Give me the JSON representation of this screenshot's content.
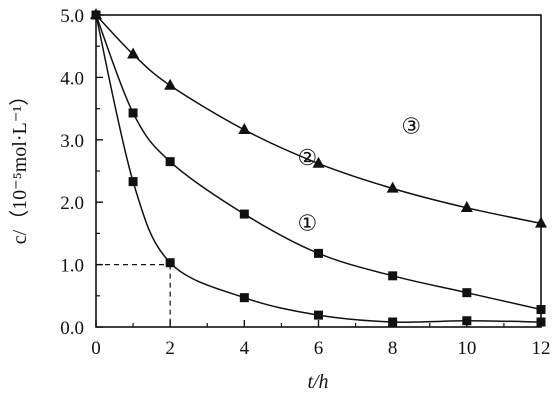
{
  "chart_data": {
    "type": "line",
    "xlabel": "t/h",
    "ylabel": "c/（10⁻⁵mol·L⁻¹）",
    "xlim": [
      0,
      12
    ],
    "ylim": [
      0,
      5.0
    ],
    "x_ticks": [
      "0",
      "2",
      "4",
      "6",
      "8",
      "10",
      "12"
    ],
    "y_ticks": [
      "0.0",
      "1.0",
      "2.0",
      "3.0",
      "4.0",
      "5.0"
    ],
    "grid": false,
    "series": [
      {
        "name": "①",
        "marker": "square",
        "x": [
          0,
          1,
          2,
          4,
          6,
          8,
          10,
          12
        ],
        "y": [
          5.0,
          2.33,
          1.03,
          0.47,
          0.19,
          0.08,
          0.1,
          0.08
        ]
      },
      {
        "name": "②",
        "marker": "square",
        "x": [
          0,
          1,
          2,
          4,
          6,
          8,
          10,
          12
        ],
        "y": [
          5.0,
          3.43,
          2.65,
          1.81,
          1.18,
          0.82,
          0.55,
          0.28
        ]
      },
      {
        "name": "③",
        "marker": "triangle",
        "x": [
          0,
          1,
          2,
          4,
          6,
          8,
          10,
          12
        ],
        "y": [
          5.0,
          4.37,
          3.87,
          3.16,
          2.62,
          2.22,
          1.91,
          1.66
        ]
      }
    ],
    "reference_point": {
      "x": 2,
      "y": 1.0
    }
  }
}
